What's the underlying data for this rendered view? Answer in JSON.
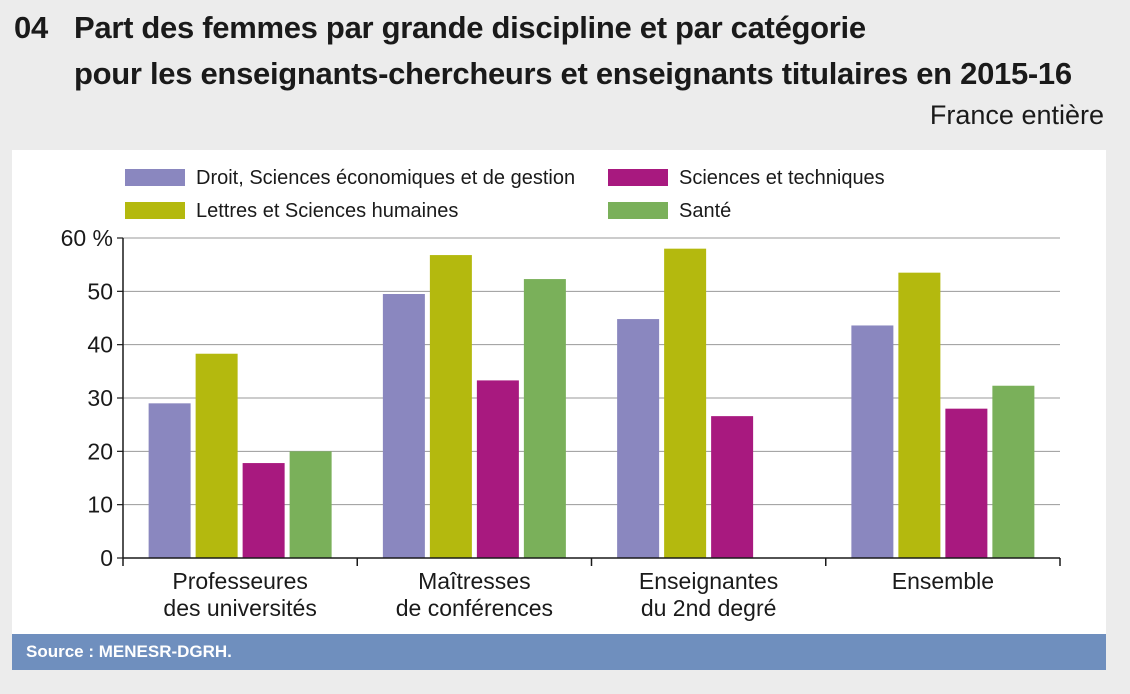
{
  "header": {
    "number": "04",
    "title_line1": "Part des femmes par grande discipline et par catégorie",
    "title_line2": "pour les enseignants-chercheurs et enseignants titulaires en 2015-16",
    "subtitle": "France entière"
  },
  "footer": {
    "source": "Source  : MENESR-DGRH."
  },
  "chart_data": {
    "type": "bar",
    "title": "Part des femmes par grande discipline et par catégorie pour les enseignants-chercheurs et enseignants titulaires en 2015-16",
    "categories": [
      [
        "Professeures",
        "des universités"
      ],
      [
        "Maîtresses",
        "de conférences"
      ],
      [
        "Enseignantes",
        "du 2nd degré"
      ],
      [
        "Ensemble"
      ]
    ],
    "series": [
      {
        "name": "Droit, Sciences économiques et de gestion",
        "color": "#8a87bf",
        "values": [
          29,
          49.5,
          44.8,
          43.6
        ]
      },
      {
        "name": "Lettres et Sciences humaines",
        "color": "#b4b90e",
        "values": [
          38.3,
          56.8,
          58,
          53.5
        ]
      },
      {
        "name": "Sciences et techniques",
        "color": "#a8197f",
        "values": [
          17.8,
          33.3,
          26.6,
          28
        ]
      },
      {
        "name": "Santé",
        "color": "#7ab05a",
        "values": [
          20,
          52.3,
          null,
          32.3
        ]
      }
    ],
    "ylim": [
      0,
      60
    ],
    "yticks": [
      0,
      10,
      20,
      30,
      40,
      50,
      60
    ],
    "ytick_labels": [
      "0",
      "10",
      "20",
      "30",
      "40",
      "50",
      "60 %"
    ],
    "xlabel": "",
    "ylabel": "",
    "grid": true,
    "legend_position": "top"
  }
}
